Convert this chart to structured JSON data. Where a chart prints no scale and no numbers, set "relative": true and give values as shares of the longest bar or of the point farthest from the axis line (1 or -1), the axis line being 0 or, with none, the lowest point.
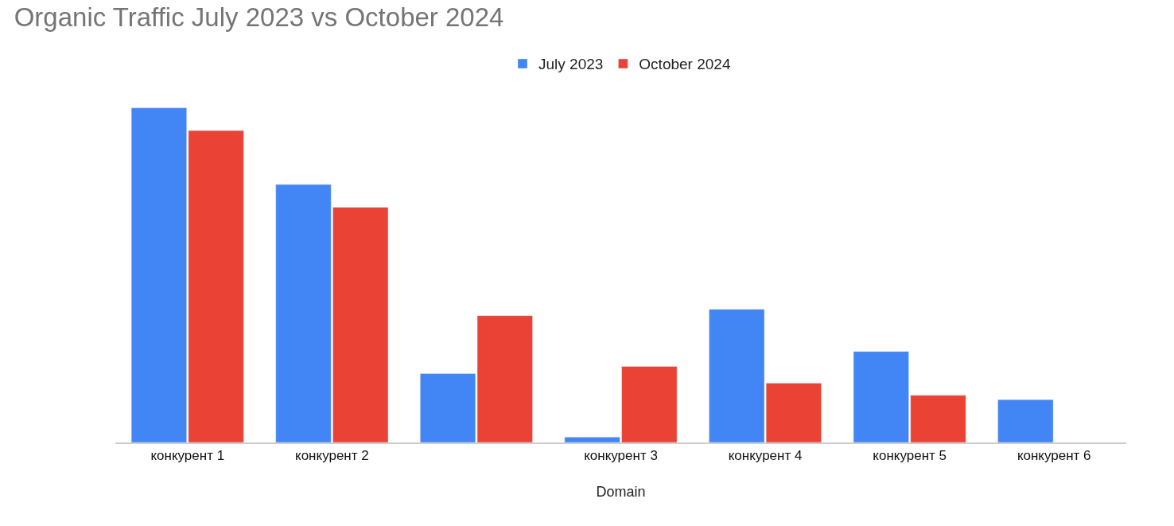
{
  "chart_data": {
    "type": "bar",
    "title": "Organic Traffic July 2023 vs October 2024",
    "xlabel": "Domain",
    "relative": true,
    "categories": [
      "конкурент 1",
      "конкурент 2",
      null,
      "конкурент 3",
      "конкурент 4",
      "конкурент 5",
      "конкурент 6"
    ],
    "series": [
      {
        "name": "July 2023",
        "color": "#4285f4",
        "values": [
          1,
          0.771,
          0.206,
          0.016,
          0.398,
          0.272,
          0.128
        ]
      },
      {
        "name": "October 2024",
        "color": "#ea4335",
        "values": [
          0.932,
          0.703,
          0.379,
          0.227,
          0.177,
          0.141,
          null
        ]
      }
    ],
    "legend": "top"
  }
}
